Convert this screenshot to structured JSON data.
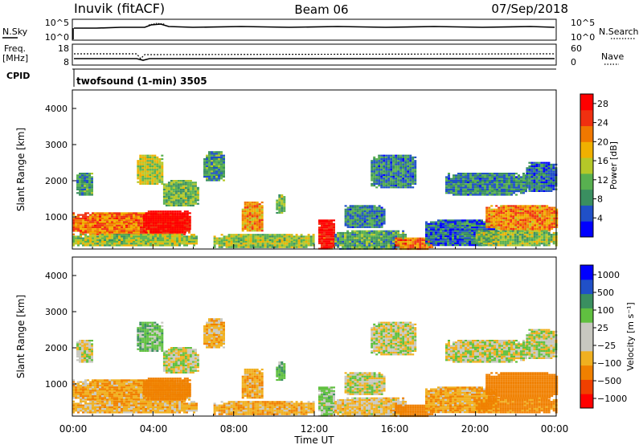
{
  "header": {
    "station": "Inuvik (fitACF)",
    "beam": "Beam 06",
    "date": "07/Sep/2018"
  },
  "top_panels": {
    "noise": {
      "left_label": "N.Sky",
      "right_label": "N.Search",
      "left_ticks": [
        "10^5",
        "10^0"
      ],
      "right_ticks": [
        "10^5",
        "10^0"
      ]
    },
    "freq": {
      "left_label_1": "Freq.",
      "left_label_2": "[MHz]",
      "left_ticks": [
        "18",
        "8"
      ],
      "right_ticks": [
        "60",
        "0"
      ],
      "right_label": "Nave"
    },
    "cpid_label": "CPID",
    "cpid_text": "twofsound (1-min) 3505"
  },
  "colors": {
    "power": [
      "#0000ff",
      "#2050c8",
      "#3a8f60",
      "#58b050",
      "#b5c828",
      "#f0b000",
      "#f07800",
      "#f03010",
      "#ff0000"
    ],
    "velocity": [
      "#ff0000",
      "#f04000",
      "#f08000",
      "#f0b020",
      "#c8c8c0",
      "#c8c8c0",
      "#60c040",
      "#3a8f60",
      "#2050c8",
      "#0000ff"
    ]
  },
  "chart_data": [
    {
      "type": "heatmap",
      "title": "",
      "xlabel": "",
      "ylabel": "Slant Range [km]",
      "x_ticks": [
        "00:00",
        "04:00",
        "08:00",
        "12:00",
        "16:00",
        "20:00",
        "00:00"
      ],
      "xlim_hours": [
        0,
        24
      ],
      "ylim_km": [
        180,
        4600
      ],
      "y_ticks": [
        "1000",
        "2000",
        "3000",
        "4000"
      ],
      "colorbar": {
        "label": "Power [dB]",
        "ticks": [
          "4",
          "8",
          "12",
          "16",
          "20",
          "24",
          "28"
        ],
        "range": [
          0,
          30
        ]
      },
      "regions": [
        {
          "t": [
            0.0,
            5.8
          ],
          "r": [
            600,
            1200
          ],
          "value": 22
        },
        {
          "t": [
            3.5,
            5.8
          ],
          "r": [
            650,
            1250
          ],
          "value": 30
        },
        {
          "t": [
            0.0,
            6.2
          ],
          "r": [
            300,
            600
          ],
          "value": 14
        },
        {
          "t": [
            0.2,
            1.0
          ],
          "r": [
            1700,
            2300
          ],
          "value": 10
        },
        {
          "t": [
            3.2,
            4.4
          ],
          "r": [
            2000,
            2800
          ],
          "value": 15
        },
        {
          "t": [
            4.5,
            6.2
          ],
          "r": [
            1400,
            2100
          ],
          "value": 12
        },
        {
          "t": [
            6.5,
            7.5
          ],
          "r": [
            2100,
            2900
          ],
          "value": 9
        },
        {
          "t": [
            7.0,
            12.0
          ],
          "r": [
            250,
            600
          ],
          "value": 14
        },
        {
          "t": [
            8.4,
            9.4
          ],
          "r": [
            700,
            1500
          ],
          "value": 20
        },
        {
          "t": [
            10.1,
            10.5
          ],
          "r": [
            1200,
            1700
          ],
          "value": 12
        },
        {
          "t": [
            12.2,
            13.0
          ],
          "r": [
            200,
            1000
          ],
          "value": 28
        },
        {
          "t": [
            13.0,
            16.5
          ],
          "r": [
            200,
            700
          ],
          "value": 10
        },
        {
          "t": [
            13.5,
            15.5
          ],
          "r": [
            800,
            1400
          ],
          "value": 8
        },
        {
          "t": [
            14.8,
            17.0
          ],
          "r": [
            1900,
            2800
          ],
          "value": 8
        },
        {
          "t": [
            16.0,
            17.8
          ],
          "r": [
            200,
            500
          ],
          "value": 22
        },
        {
          "t": [
            17.5,
            21.0
          ],
          "r": [
            300,
            1000
          ],
          "value": 6
        },
        {
          "t": [
            18.5,
            22.5
          ],
          "r": [
            1700,
            2300
          ],
          "value": 8
        },
        {
          "t": [
            20.5,
            24.0
          ],
          "r": [
            700,
            1400
          ],
          "value": 21
        },
        {
          "t": [
            22.5,
            24.0
          ],
          "r": [
            1800,
            2600
          ],
          "value": 6
        },
        {
          "t": [
            20.0,
            24.0
          ],
          "r": [
            300,
            700
          ],
          "value": 13
        }
      ]
    },
    {
      "type": "heatmap",
      "title": "",
      "xlabel": "Time UT",
      "ylabel": "Slant Range [km]",
      "x_ticks": [
        "00:00",
        "04:00",
        "08:00",
        "12:00",
        "16:00",
        "20:00",
        "00:00"
      ],
      "xlim_hours": [
        0,
        24
      ],
      "ylim_km": [
        180,
        4600
      ],
      "y_ticks": [
        "1000",
        "2000",
        "3000",
        "4000"
      ],
      "colorbar": {
        "label": "Velocity [m s⁻¹]",
        "ticks": [
          "1000",
          "500",
          "100",
          "25",
          "−25",
          "−100",
          "−500",
          "−1000"
        ]
      },
      "regions": [
        {
          "t": [
            0.0,
            5.8
          ],
          "r": [
            600,
            1200
          ],
          "value": -80
        },
        {
          "t": [
            3.5,
            5.8
          ],
          "r": [
            650,
            1250
          ],
          "value": -200
        },
        {
          "t": [
            0.0,
            6.2
          ],
          "r": [
            300,
            600
          ],
          "value": -60
        },
        {
          "t": [
            0.2,
            1.0
          ],
          "r": [
            1700,
            2300
          ],
          "value": 0
        },
        {
          "t": [
            3.2,
            4.4
          ],
          "r": [
            2000,
            2800
          ],
          "value": 60
        },
        {
          "t": [
            4.5,
            6.2
          ],
          "r": [
            1400,
            2100
          ],
          "value": 0
        },
        {
          "t": [
            6.5,
            7.5
          ],
          "r": [
            2100,
            2900
          ],
          "value": -60
        },
        {
          "t": [
            7.0,
            12.0
          ],
          "r": [
            250,
            600
          ],
          "value": -70
        },
        {
          "t": [
            8.4,
            9.4
          ],
          "r": [
            700,
            1500
          ],
          "value": -80
        },
        {
          "t": [
            10.1,
            10.5
          ],
          "r": [
            1200,
            1700
          ],
          "value": 80
        },
        {
          "t": [
            12.2,
            13.0
          ],
          "r": [
            200,
            1000
          ],
          "value": 40
        },
        {
          "t": [
            13.0,
            16.5
          ],
          "r": [
            200,
            700
          ],
          "value": -40
        },
        {
          "t": [
            13.5,
            15.5
          ],
          "r": [
            800,
            1400
          ],
          "value": 0
        },
        {
          "t": [
            14.8,
            17.0
          ],
          "r": [
            1900,
            2800
          ],
          "value": 0
        },
        {
          "t": [
            16.0,
            17.8
          ],
          "r": [
            200,
            500
          ],
          "value": -300
        },
        {
          "t": [
            17.5,
            21.0
          ],
          "r": [
            300,
            1000
          ],
          "value": -80
        },
        {
          "t": [
            18.5,
            22.5
          ],
          "r": [
            1700,
            2300
          ],
          "value": 0
        },
        {
          "t": [
            20.5,
            24.0
          ],
          "r": [
            700,
            1400
          ],
          "value": -200
        },
        {
          "t": [
            22.5,
            24.0
          ],
          "r": [
            1800,
            2600
          ],
          "value": 0
        },
        {
          "t": [
            20.0,
            24.0
          ],
          "r": [
            300,
            700
          ],
          "value": -150
        }
      ]
    }
  ]
}
